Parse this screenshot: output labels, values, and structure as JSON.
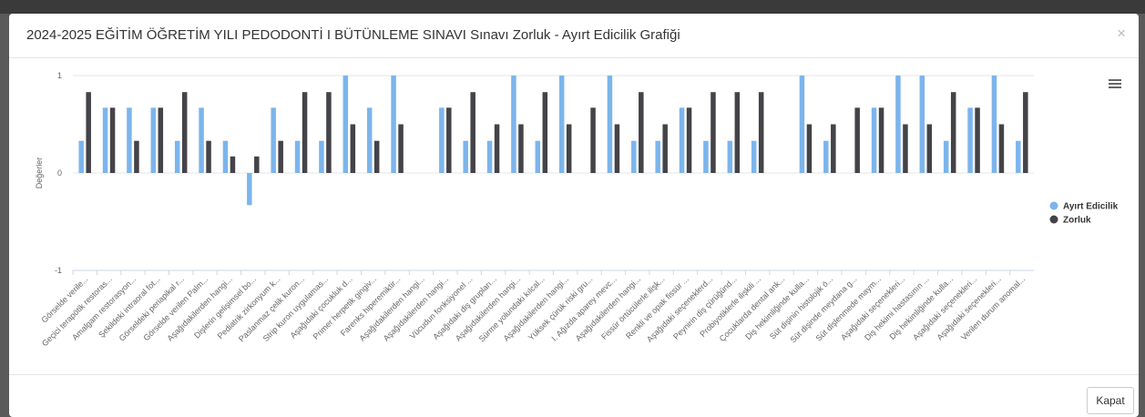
{
  "modal": {
    "title": "2024-2025 EĞİTİM ÖĞRETİM YILI PEDODONTİ I BÜTÜNLEME SINAVI Sınavı Zorluk - Ayırt Edicilik Grafiği",
    "close_icon": "×",
    "button": "Kapat"
  },
  "chart_data": {
    "type": "bar",
    "ylabel": "Değerler",
    "categories": [
      "Görselde verile...",
      "Geçici terapötik restoras...",
      "Amalgam restorasyon...",
      "Şekildeki intraoral fot...",
      "Görseldeki periapikal r...",
      "Görselde verilen Palm...",
      "Aşağıdakilerden hangi...",
      "Dişlerin gelişimsel bo...",
      "Pediatrik zirkonyum k...",
      "Paslanmaz çelik kuron...",
      "Strip kuron uygulamas...",
      "Aşağıdaki çocukluk d...",
      "Primer herpetik gingiv...",
      "Farenks hiperemiktir...",
      "Aşağıdakilerden hangi...",
      "Aşağıdakilerden hangi...",
      "Vücudun fonksiyonel ...",
      "Aşağıdaki diş grupları...",
      "Aşağıdakilerden hangi...",
      "Sürme yolundaki kılcal...",
      "Aşağıdakilerden hangi...",
      "Yüksek çürük riski gru...",
      "I. Ağızda aparey mevc...",
      "Aşağıdakilerden hangi...",
      "Fissür örtücülerle ilişk...",
      "Renkli ve opak fissür ...",
      "Aşağıdaki seçeneklerd...",
      "Peynirin diş çürüğünd...",
      "Probiyotiklerle ilişkili ...",
      "Çocuklarda dental ank...",
      "Diş hekimliğinde kulla...",
      "Süt dişinin histolojik ö...",
      "Süt dişinde meydana g...",
      "Süt dişlenmede maym...",
      "Aşağıdaki seçenekleri...",
      "Diş hekimi hastasının ...",
      "Diş hekimliğinde kulla...",
      "Aşağıdaki seçenekleri...",
      "Aşağıdaki seçenekleri...",
      "Verilen durum anomal..."
    ],
    "series": [
      {
        "name": "Ayırt Edicilik",
        "color": "#7cb5ec",
        "values": [
          0.33,
          0.67,
          0.67,
          0.67,
          0.33,
          0.67,
          0.33,
          -0.33,
          0.67,
          0.33,
          0.33,
          1,
          0.67,
          1,
          0,
          0.67,
          0.33,
          0.33,
          1,
          0.33,
          1,
          0,
          1,
          0.33,
          0.33,
          0.67,
          0.33,
          0.33,
          0.33,
          0,
          1,
          0.33,
          0,
          0.67,
          1,
          1,
          0.33,
          0.67,
          1,
          0.33
        ]
      },
      {
        "name": "Zorluk",
        "color": "#434348",
        "values": [
          0.83,
          0.67,
          0.33,
          0.67,
          0.83,
          0.33,
          0.17,
          0.17,
          0.33,
          0.83,
          0.83,
          0.5,
          0.33,
          0.5,
          0,
          0.67,
          0.83,
          0.5,
          0.5,
          0.83,
          0.5,
          0.67,
          0.5,
          0.83,
          0.5,
          0.67,
          0.83,
          0.83,
          0.83,
          0,
          0.5,
          0.5,
          0.67,
          0.67,
          0.5,
          0.5,
          0.83,
          0.67,
          0.5,
          0.83
        ]
      }
    ],
    "ylim": [
      -1,
      1
    ],
    "yticks": [
      -1,
      0,
      1
    ],
    "grid": true,
    "legend": "right"
  }
}
